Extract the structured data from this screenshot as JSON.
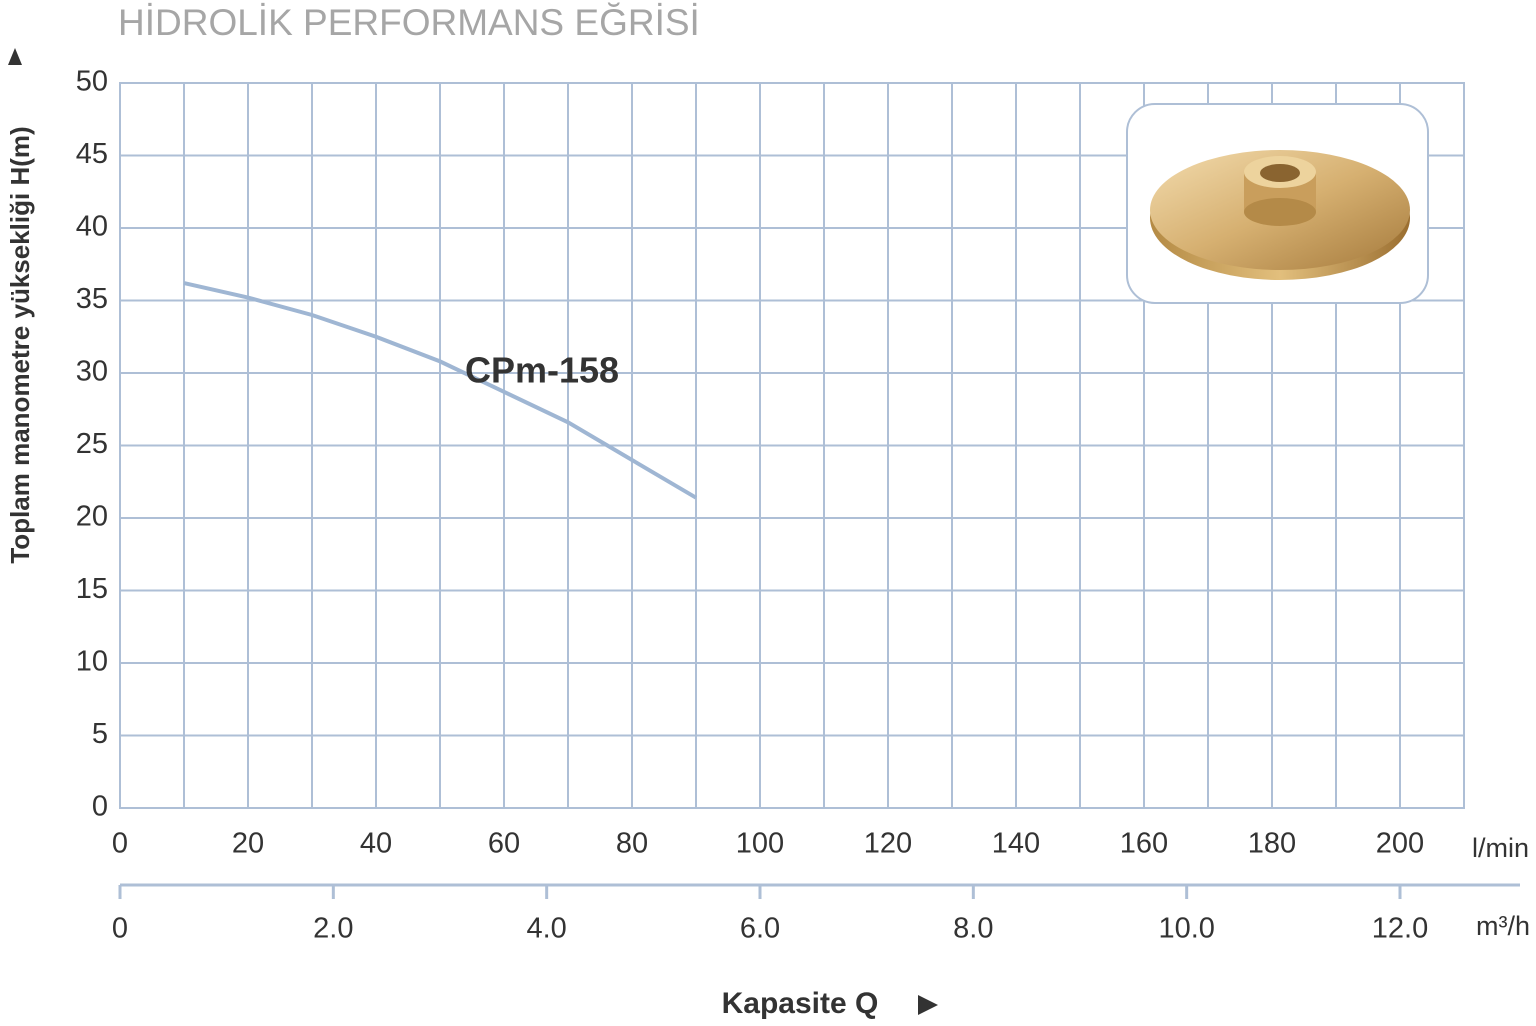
{
  "chart_data": {
    "type": "line",
    "title": "HİDROLİK PERFORMANS EĞRİSİ",
    "ylabel": "Toplam manometre yüksekliği H(m)",
    "xlabel": "Kapasite Q",
    "x_unit": "l/min",
    "x2_unit": "m³/h",
    "x": [
      10,
      20,
      30,
      40,
      50,
      60,
      70,
      80,
      90
    ],
    "series": [
      {
        "name": "CPm-158",
        "color": "#9fb6d3",
        "values": [
          36.2,
          35.2,
          34.0,
          32.5,
          30.8,
          28.7,
          26.6,
          24.0,
          21.4
        ]
      }
    ],
    "xlim": [
      0,
      210
    ],
    "xticks": [
      0,
      20,
      40,
      60,
      80,
      100,
      120,
      140,
      160,
      180,
      200
    ],
    "xminorticks": [
      10,
      30,
      50,
      70,
      90,
      110,
      130,
      150,
      170,
      190
    ],
    "ylim": [
      0,
      50
    ],
    "yticks": [
      0,
      5,
      10,
      15,
      20,
      25,
      30,
      35,
      40,
      45,
      50
    ],
    "x2lim": [
      0,
      12.6
    ],
    "x2ticks": [
      0,
      {
        "value": 2,
        "label": "2.0"
      },
      {
        "value": 4,
        "label": "4.0"
      },
      {
        "value": 6,
        "label": "6.0"
      },
      {
        "value": 8,
        "label": "8.0"
      },
      {
        "value": 10,
        "label": "10.0"
      },
      {
        "value": 12,
        "label": "12.0"
      }
    ],
    "grid": true,
    "grid_color": "#aebfd6"
  }
}
